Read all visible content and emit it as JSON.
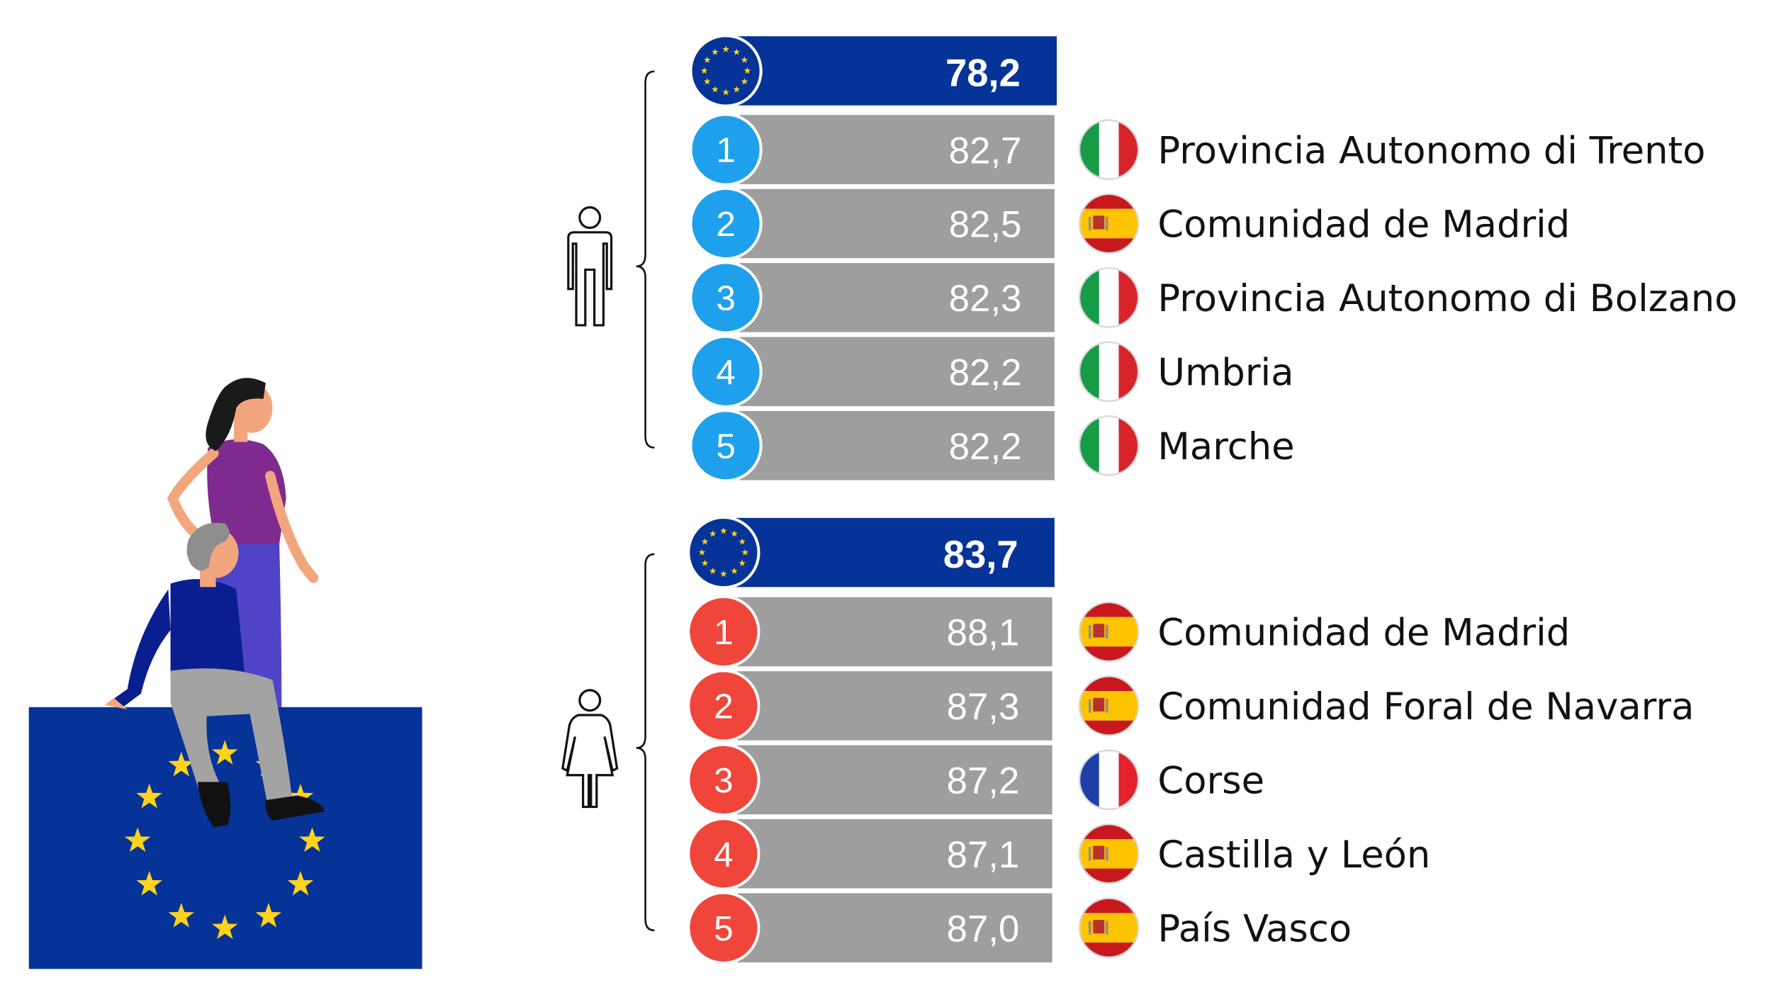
{
  "colors": {
    "eu_blue": "#063397",
    "eu_star": "#FFD21E",
    "bar_grey": "#9E9E9E",
    "men_rank": "#1FA0EC",
    "women_rank": "#F0453A",
    "woman_top": "#7F2A8E",
    "woman_skirt": "#4F44C8",
    "man_top": "#0A1F8F",
    "man_trousers": "#A3A3A3"
  },
  "icons": {
    "men_group": "man-outline-icon",
    "women_group": "woman-outline-icon",
    "eu_badge": "eu-flag-icon",
    "country_flags": [
      "italy-flag-icon",
      "spain-flag-icon",
      "france-flag-icon"
    ]
  },
  "chart_data": [
    {
      "type": "bar",
      "group": "men",
      "eu_average": "78,2",
      "ranks": [
        "1",
        "2",
        "3",
        "4",
        "5"
      ],
      "values": [
        82.7,
        82.5,
        82.3,
        82.2,
        82.2
      ],
      "value_labels": [
        "82,7",
        "82,5",
        "82,3",
        "82,2",
        "82,2"
      ],
      "regions": [
        "Provincia Autonomo di Trento",
        "Comunidad de Madrid",
        "Provincia Autonomo di Bolzano",
        "Umbria",
        "Marche"
      ],
      "countries": [
        "italy",
        "spain",
        "italy",
        "italy",
        "italy"
      ]
    },
    {
      "type": "bar",
      "group": "women",
      "eu_average": "83,7",
      "ranks": [
        "1",
        "2",
        "3",
        "4",
        "5"
      ],
      "values": [
        88.1,
        87.3,
        87.2,
        87.1,
        87.0
      ],
      "value_labels": [
        "88,1",
        "87,3",
        "87,2",
        "87,1",
        "87,0"
      ],
      "regions": [
        "Comunidad de Madrid",
        "Comunidad Foral de Navarra",
        "Corse",
        "Castilla y León",
        "País Vasco"
      ],
      "countries": [
        "spain",
        "spain",
        "france",
        "spain",
        "spain"
      ]
    }
  ]
}
